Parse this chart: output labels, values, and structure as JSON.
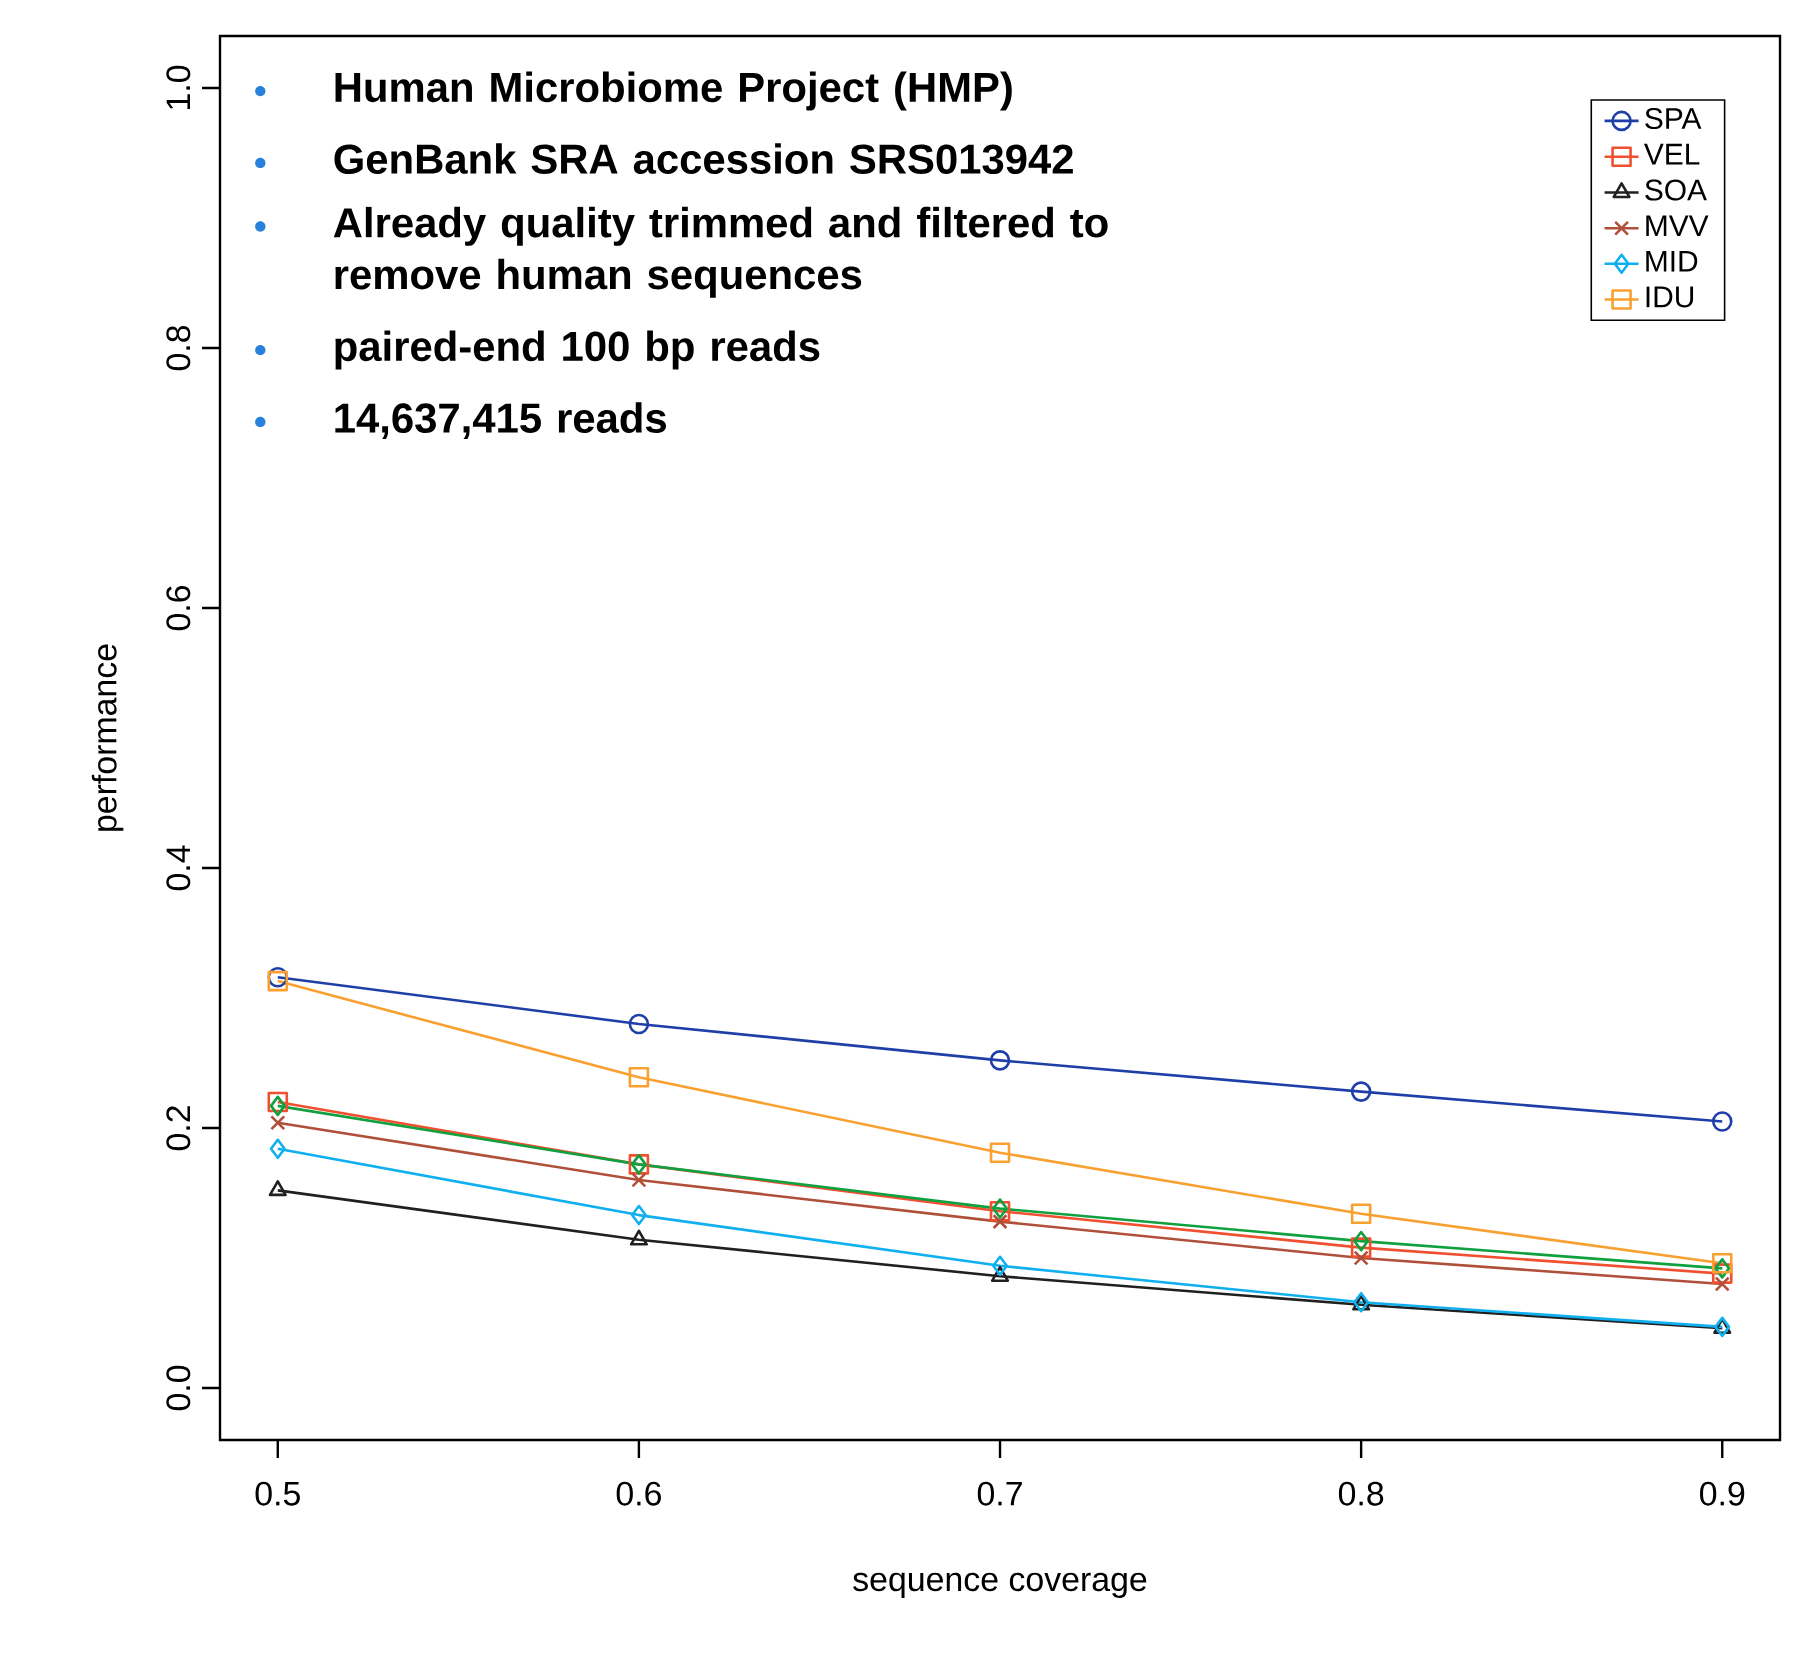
{
  "chart_data": {
    "type": "line",
    "xlabel": "sequence coverage",
    "ylabel": "performance",
    "x": [
      0.5,
      0.6,
      0.7,
      0.8,
      0.9
    ],
    "series": [
      {
        "name": "SPA",
        "color": "#1f3fa8",
        "marker": "circle",
        "values": [
          0.316,
          0.28,
          0.252,
          0.228,
          0.205
        ]
      },
      {
        "name": "VEL",
        "color": "#f05030",
        "marker": "square",
        "values": [
          0.22,
          0.172,
          0.136,
          0.108,
          0.088
        ]
      },
      {
        "name": null,
        "color": "#10a040",
        "marker": "diamond",
        "values": [
          0.217,
          0.172,
          0.138,
          0.113,
          0.092
        ]
      },
      {
        "name": "SOA",
        "color": "#202020",
        "marker": "triangle",
        "values": [
          0.152,
          0.114,
          0.086,
          0.064,
          0.046
        ]
      },
      {
        "name": "MVV",
        "color": "#b0503a",
        "marker": "cross",
        "values": [
          0.204,
          0.16,
          0.128,
          0.1,
          0.08
        ]
      },
      {
        "name": "MID",
        "color": "#10b0f0",
        "marker": "diamond",
        "values": [
          0.184,
          0.133,
          0.094,
          0.066,
          0.047
        ]
      },
      {
        "name": "IDU",
        "color": "#f8a030",
        "marker": "square",
        "values": [
          0.313,
          0.239,
          0.181,
          0.134,
          0.096
        ]
      }
    ],
    "xlim": [
      0.484,
      0.916
    ],
    "ylim": [
      -0.04,
      1.04
    ],
    "xticks": [
      0.5,
      0.6,
      0.7,
      0.8,
      0.9
    ],
    "yticks": [
      {
        "value": 0,
        "label": "0.0"
      },
      0.2,
      0.4,
      0.6,
      0.8,
      {
        "value": 1,
        "label": "1.0"
      }
    ],
    "grid": false,
    "legend": "top right",
    "annotations": [
      "Human Microbiome Project (HMP)",
      "GenBank SRA accession SRS013942",
      "Already quality trimmed and filtered to remove human sequences",
      "paired-end 100 bp reads",
      "14,637,415 reads"
    ]
  }
}
